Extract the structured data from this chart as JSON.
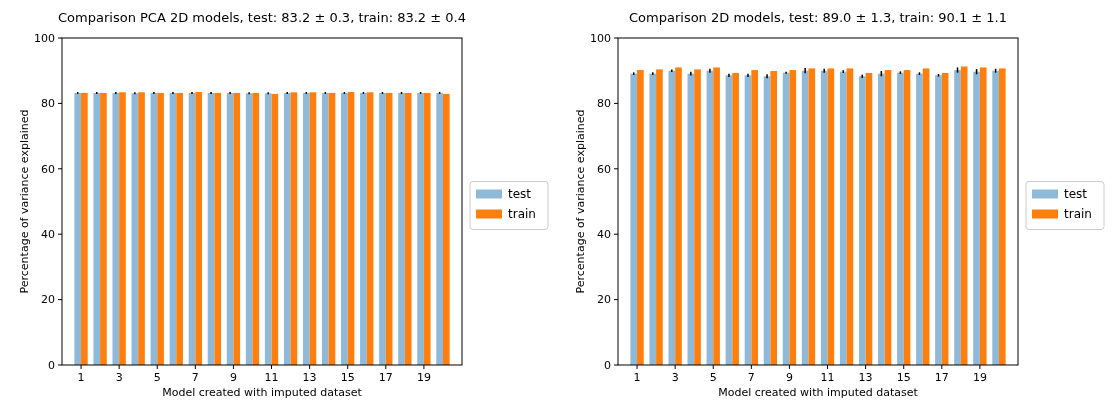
{
  "chart_data": [
    {
      "type": "bar",
      "title": "Comparison PCA 2D models, test: 83.2 ± 0.3, train: 83.2 ± 0.4",
      "xlabel": "Model created with imputed dataset",
      "ylabel": "Percentage of variance explained",
      "x": [
        1,
        2,
        3,
        4,
        5,
        6,
        7,
        8,
        9,
        10,
        11,
        12,
        13,
        14,
        15,
        16,
        17,
        18,
        19,
        20
      ],
      "xlim": [
        0,
        21
      ],
      "xticks": [
        1,
        3,
        5,
        7,
        9,
        11,
        13,
        15,
        17,
        19
      ],
      "ylim": [
        0,
        100
      ],
      "yticks": [
        0,
        20,
        40,
        60,
        80,
        100
      ],
      "legend": "right",
      "series": [
        {
          "name": "test",
          "color": "#8fb9d9",
          "values": [
            83.2,
            83.2,
            83.2,
            83.1,
            83.2,
            83.2,
            83.2,
            83.2,
            83.2,
            83.1,
            83.1,
            83.2,
            83.2,
            83.2,
            83.2,
            83.2,
            83.2,
            83.2,
            83.2,
            83.2
          ],
          "errors": [
            0.3,
            0.3,
            0.3,
            0.3,
            0.3,
            0.3,
            0.3,
            0.3,
            0.3,
            0.3,
            0.3,
            0.3,
            0.3,
            0.3,
            0.3,
            0.3,
            0.3,
            0.3,
            0.3,
            0.3
          ]
        },
        {
          "name": "train",
          "color": "#ff7f0e",
          "values": [
            83.2,
            83.2,
            83.4,
            83.4,
            83.2,
            83.2,
            83.5,
            83.2,
            83.2,
            83.2,
            82.9,
            83.4,
            83.4,
            83.2,
            83.5,
            83.4,
            83.2,
            83.2,
            83.2,
            82.9
          ]
        }
      ]
    },
    {
      "type": "bar",
      "title": "Comparison 2D models, test: 89.0 ± 1.3, train: 90.1 ± 1.1",
      "xlabel": "Model created with imputed dataset",
      "ylabel": "Percentage of variance explained",
      "x": [
        1,
        2,
        3,
        4,
        5,
        6,
        7,
        8,
        9,
        10,
        11,
        12,
        13,
        14,
        15,
        16,
        17,
        18,
        19,
        20
      ],
      "xlim": [
        0,
        21
      ],
      "xticks": [
        1,
        3,
        5,
        7,
        9,
        11,
        13,
        15,
        17,
        19
      ],
      "ylim": [
        0,
        100
      ],
      "yticks": [
        0,
        20,
        40,
        60,
        80,
        100
      ],
      "legend": "right",
      "series": [
        {
          "name": "test",
          "color": "#8fb9d9",
          "values": [
            89.1,
            89.1,
            90.0,
            89.1,
            90.0,
            88.6,
            88.6,
            88.3,
            89.4,
            90.0,
            90.0,
            89.7,
            88.3,
            89.1,
            89.4,
            89.1,
            88.6,
            90.2,
            89.7,
            90.0
          ],
          "errors": [
            0.4,
            0.4,
            0.4,
            0.6,
            0.6,
            0.5,
            0.5,
            0.6,
            0.3,
            0.8,
            0.6,
            0.4,
            0.5,
            0.8,
            0.4,
            0.4,
            0.4,
            0.8,
            0.8,
            0.6
          ]
        },
        {
          "name": "train",
          "color": "#ff7f0e",
          "values": [
            90.2,
            90.4,
            91.0,
            90.4,
            91.0,
            89.3,
            90.2,
            89.9,
            90.2,
            90.7,
            90.7,
            90.7,
            89.3,
            90.2,
            90.2,
            90.7,
            89.3,
            91.3,
            91.0,
            90.7
          ]
        }
      ]
    }
  ]
}
